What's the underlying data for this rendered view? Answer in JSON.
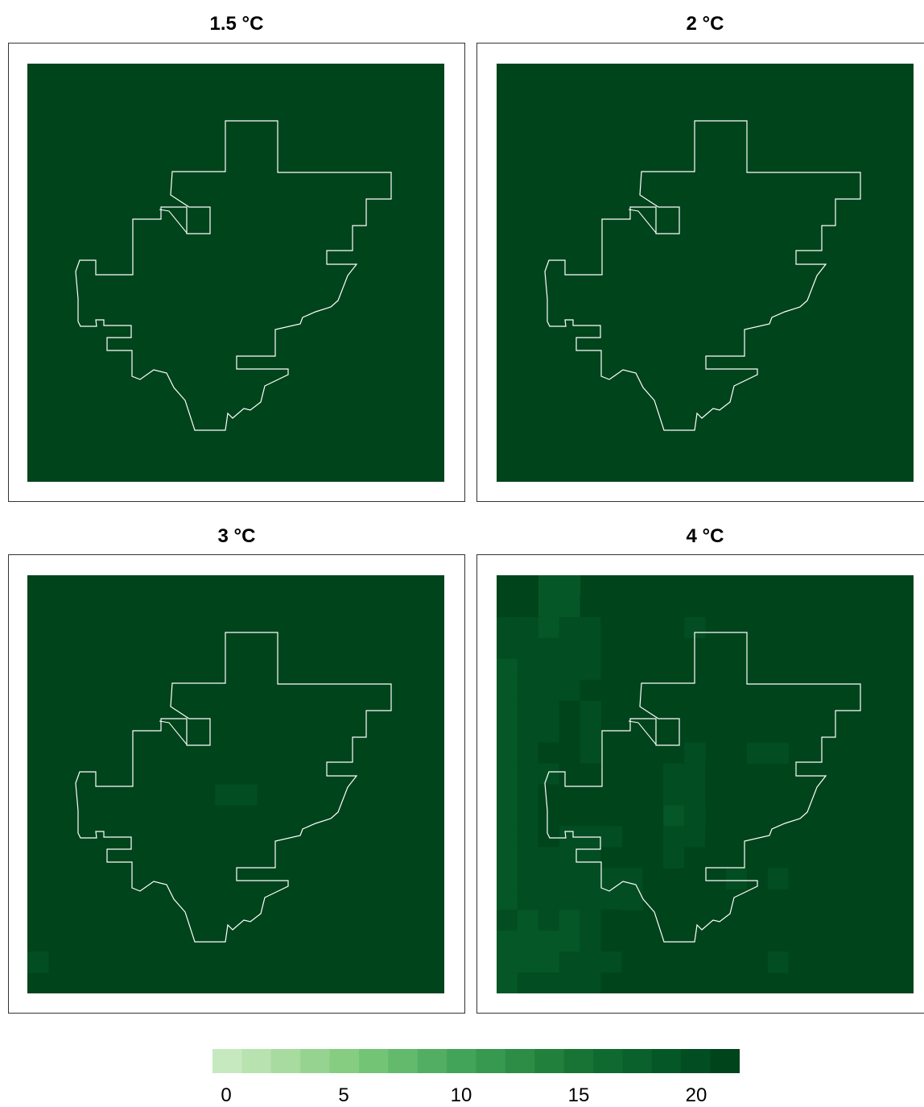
{
  "panels": [
    {
      "title": "1.5 °C"
    },
    {
      "title": "2 °C"
    },
    {
      "title": "3 °C"
    },
    {
      "title": "4 °C"
    }
  ],
  "colorbar": {
    "min": 0,
    "max": 21.5,
    "tick_labels": [
      "0",
      "5",
      "10",
      "15",
      "20"
    ],
    "colors": [
      "#c7e9c0",
      "#b8e2b0",
      "#a8dba0",
      "#97d390",
      "#86cc81",
      "#74c476",
      "#63b96c",
      "#52ae62",
      "#42a459",
      "#37984f",
      "#2d8c46",
      "#22803d",
      "#177435",
      "#0f6a30",
      "#0a612c",
      "#055727",
      "#024d22",
      "#00441b"
    ]
  },
  "chart_data": {
    "type": "heatmap",
    "grid": "20x20",
    "value_range": [
      0,
      21.5
    ],
    "panels": [
      {
        "title": "1.5 °C",
        "base_value": 21.5,
        "cells": []
      },
      {
        "title": "2 °C",
        "base_value": 21.5,
        "cells": []
      },
      {
        "title": "3 °C",
        "base_value": 21.5,
        "cells": [
          [
            9,
            10,
            20
          ],
          [
            10,
            10,
            20
          ],
          [
            4,
            14,
            20.5
          ],
          [
            4,
            15,
            20.5
          ],
          [
            3,
            15,
            20.5
          ],
          [
            0,
            18,
            20
          ],
          [
            2,
            18,
            20.5
          ]
        ]
      },
      {
        "title": "4 °C",
        "base_value": 21.5,
        "cells": [
          [
            0,
            1,
            20.5
          ],
          [
            0,
            2,
            19.5
          ],
          [
            0,
            3,
            19.5
          ],
          [
            0,
            4,
            19
          ],
          [
            0,
            5,
            18.5
          ],
          [
            0,
            6,
            19
          ],
          [
            0,
            7,
            18.5
          ],
          [
            0,
            8,
            18.5
          ],
          [
            0,
            9,
            19
          ],
          [
            0,
            10,
            19
          ],
          [
            0,
            11,
            18.5
          ],
          [
            0,
            12,
            19
          ],
          [
            0,
            13,
            18.5
          ],
          [
            0,
            14,
            19
          ],
          [
            0,
            15,
            18.5
          ],
          [
            0,
            16,
            20
          ],
          [
            0,
            17,
            19
          ],
          [
            0,
            18,
            18.5
          ],
          [
            0,
            19,
            19
          ],
          [
            1,
            1,
            20.5
          ],
          [
            1,
            2,
            20
          ],
          [
            1,
            3,
            20
          ],
          [
            1,
            4,
            20
          ],
          [
            1,
            5,
            20
          ],
          [
            1,
            6,
            20
          ],
          [
            1,
            7,
            20
          ],
          [
            1,
            8,
            20
          ],
          [
            1,
            9,
            20
          ],
          [
            1,
            10,
            19.5
          ],
          [
            1,
            11,
            20
          ],
          [
            1,
            12,
            19.5
          ],
          [
            1,
            13,
            20
          ],
          [
            1,
            14,
            20
          ],
          [
            1,
            15,
            19.5
          ],
          [
            1,
            16,
            19
          ],
          [
            1,
            17,
            19
          ],
          [
            1,
            18,
            19
          ],
          [
            1,
            19,
            20
          ],
          [
            2,
            0,
            19
          ],
          [
            2,
            1,
            19
          ],
          [
            2,
            2,
            19
          ],
          [
            2,
            3,
            19.5
          ],
          [
            2,
            4,
            20
          ],
          [
            2,
            5,
            19.5
          ],
          [
            2,
            6,
            20
          ],
          [
            2,
            7,
            20
          ],
          [
            2,
            8,
            20.5
          ],
          [
            2,
            9,
            20
          ],
          [
            2,
            10,
            20.5
          ],
          [
            2,
            11,
            20.5
          ],
          [
            2,
            12,
            20.5
          ],
          [
            2,
            13,
            20
          ],
          [
            2,
            14,
            20
          ],
          [
            2,
            15,
            19.5
          ],
          [
            2,
            16,
            19.5
          ],
          [
            2,
            17,
            19
          ],
          [
            2,
            18,
            19
          ],
          [
            2,
            19,
            19.5
          ],
          [
            3,
            0,
            19
          ],
          [
            3,
            1,
            19
          ],
          [
            3,
            2,
            19.5
          ],
          [
            3,
            3,
            19.5
          ],
          [
            3,
            4,
            20
          ],
          [
            3,
            5,
            20
          ],
          [
            3,
            6,
            20.5
          ],
          [
            3,
            7,
            20.5
          ],
          [
            3,
            8,
            20.5
          ],
          [
            3,
            9,
            20.5
          ],
          [
            3,
            10,
            20.5
          ],
          [
            3,
            11,
            20.5
          ],
          [
            3,
            12,
            20
          ],
          [
            3,
            13,
            20
          ],
          [
            3,
            14,
            19.5
          ],
          [
            3,
            15,
            19.5
          ],
          [
            3,
            16,
            19
          ],
          [
            3,
            17,
            19
          ],
          [
            3,
            18,
            19.5
          ],
          [
            3,
            19,
            19.5
          ],
          [
            4,
            1,
            20.5
          ],
          [
            4,
            2,
            20
          ],
          [
            4,
            3,
            20
          ],
          [
            4,
            4,
            20
          ],
          [
            4,
            5,
            20.5
          ],
          [
            4,
            6,
            20
          ],
          [
            4,
            7,
            20
          ],
          [
            4,
            8,
            20
          ],
          [
            4,
            9,
            20.5
          ],
          [
            4,
            10,
            20.5
          ],
          [
            4,
            11,
            20.5
          ],
          [
            4,
            12,
            20
          ],
          [
            4,
            13,
            20
          ],
          [
            4,
            14,
            19.5
          ],
          [
            4,
            15,
            19.5
          ],
          [
            4,
            16,
            20
          ],
          [
            4,
            17,
            19.5
          ],
          [
            4,
            18,
            19.5
          ],
          [
            4,
            19,
            20
          ],
          [
            5,
            2,
            20.5
          ],
          [
            5,
            3,
            20.5
          ],
          [
            5,
            4,
            20.5
          ],
          [
            5,
            5,
            20.5
          ],
          [
            5,
            8,
            20.5
          ],
          [
            5,
            9,
            20.5
          ],
          [
            5,
            10,
            20.5
          ],
          [
            5,
            11,
            20.5
          ],
          [
            5,
            12,
            20
          ],
          [
            5,
            13,
            20.5
          ],
          [
            5,
            14,
            19.5
          ],
          [
            5,
            15,
            19.5
          ],
          [
            5,
            16,
            20.5
          ],
          [
            5,
            17,
            20.5
          ],
          [
            5,
            18,
            20
          ],
          [
            5,
            19,
            20.5
          ],
          [
            6,
            3,
            20.5
          ],
          [
            6,
            4,
            20.5
          ],
          [
            6,
            5,
            20.5
          ],
          [
            6,
            8,
            20.5
          ],
          [
            6,
            14,
            20
          ],
          [
            6,
            15,
            20
          ],
          [
            6,
            18,
            20.5
          ],
          [
            6,
            19,
            20.5
          ],
          [
            7,
            14,
            20.5
          ],
          [
            7,
            19,
            20.5
          ],
          [
            8,
            5,
            20.5
          ],
          [
            8,
            14,
            20.5
          ],
          [
            9,
            0,
            20.5
          ],
          [
            9,
            1,
            20.5
          ],
          [
            9,
            2,
            20
          ],
          [
            9,
            3,
            20.5
          ],
          [
            10,
            8,
            20.5
          ],
          [
            10,
            11,
            20.5
          ],
          [
            10,
            13,
            20.5
          ],
          [
            11,
            8,
            20.5
          ],
          [
            11,
            13,
            20.5
          ],
          [
            8,
            8,
            20.5
          ],
          [
            8,
            9,
            20
          ],
          [
            8,
            10,
            19.5
          ],
          [
            8,
            11,
            19
          ],
          [
            8,
            12,
            19.5
          ],
          [
            8,
            13,
            20
          ],
          [
            9,
            4,
            20.5
          ],
          [
            9,
            8,
            20
          ],
          [
            9,
            9,
            20
          ],
          [
            9,
            10,
            19.5
          ],
          [
            9,
            11,
            19.5
          ],
          [
            9,
            12,
            20
          ],
          [
            9,
            13,
            20.5
          ],
          [
            10,
            9,
            20.5
          ],
          [
            10,
            10,
            20.5
          ],
          [
            10,
            12,
            20.5
          ],
          [
            11,
            9,
            20.5
          ],
          [
            11,
            10,
            20.5
          ],
          [
            11,
            18,
            20.5
          ],
          [
            12,
            18,
            20.5
          ],
          [
            13,
            18,
            20
          ],
          [
            14,
            18,
            20.5
          ],
          [
            12,
            8,
            20
          ],
          [
            13,
            8,
            20
          ],
          [
            11,
            14,
            20
          ],
          [
            12,
            14,
            20.5
          ],
          [
            13,
            14,
            20
          ],
          [
            14,
            14,
            20.5
          ]
        ]
      }
    ]
  }
}
